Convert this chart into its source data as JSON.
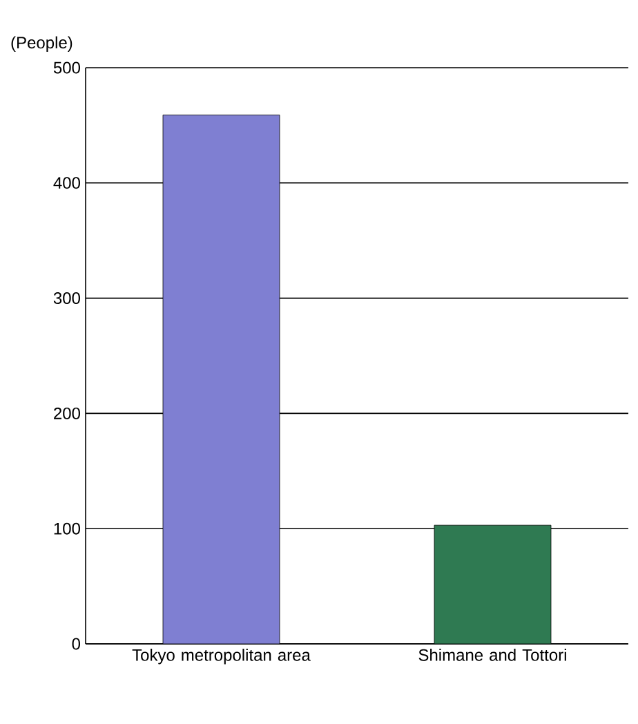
{
  "chart_data": {
    "type": "bar",
    "ylabel": "(People)",
    "categories": [
      "Tokyo metropolitan area",
      "Shimane and Tottori"
    ],
    "values": [
      459,
      103
    ],
    "colors": [
      "#7f7fd2",
      "#2f7a52"
    ],
    "ylim": [
      0,
      500
    ],
    "yticks": [
      0,
      100,
      200,
      300,
      400,
      500
    ],
    "grid": "y"
  }
}
